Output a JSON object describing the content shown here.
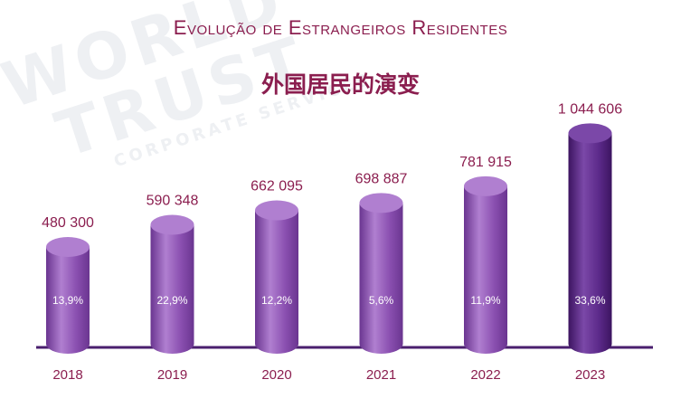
{
  "title": "Evolução de Estrangeiros Residentes",
  "subtitle": "外国居民的演变",
  "watermark": {
    "line1": "WORLD",
    "line2": "TRUST",
    "line3": "CORPORATE SERVICES"
  },
  "chart_data": {
    "type": "bar",
    "title": "Evolução de Estrangeiros Residentes",
    "subtitle": "外国居民的演变",
    "categories": [
      "2018",
      "2019",
      "2020",
      "2021",
      "2022",
      "2023"
    ],
    "values": [
      480300,
      590348,
      662095,
      698887,
      781915,
      1044606
    ],
    "value_labels": [
      "480 300",
      "590 348",
      "662 095",
      "698 887",
      "781 915",
      "1 044 606"
    ],
    "growth_labels": [
      "13,9%",
      "22,9%",
      "12,2%",
      "5,6%",
      "11,9%",
      "33,6%"
    ],
    "xlabel": "",
    "ylabel": "",
    "ylim": [
      0,
      1100000
    ],
    "grid": false,
    "legend": "none",
    "colors": {
      "bar": "#8a4fb0",
      "bar_light": "#b07fd0",
      "bar_dark": "#6a3590",
      "highlight": "#5c2a8a",
      "highlight_light": "#7b48a8",
      "highlight_dark": "#3c1460",
      "text": "#8b1e4f",
      "baseline": "#4a1f6e"
    }
  }
}
